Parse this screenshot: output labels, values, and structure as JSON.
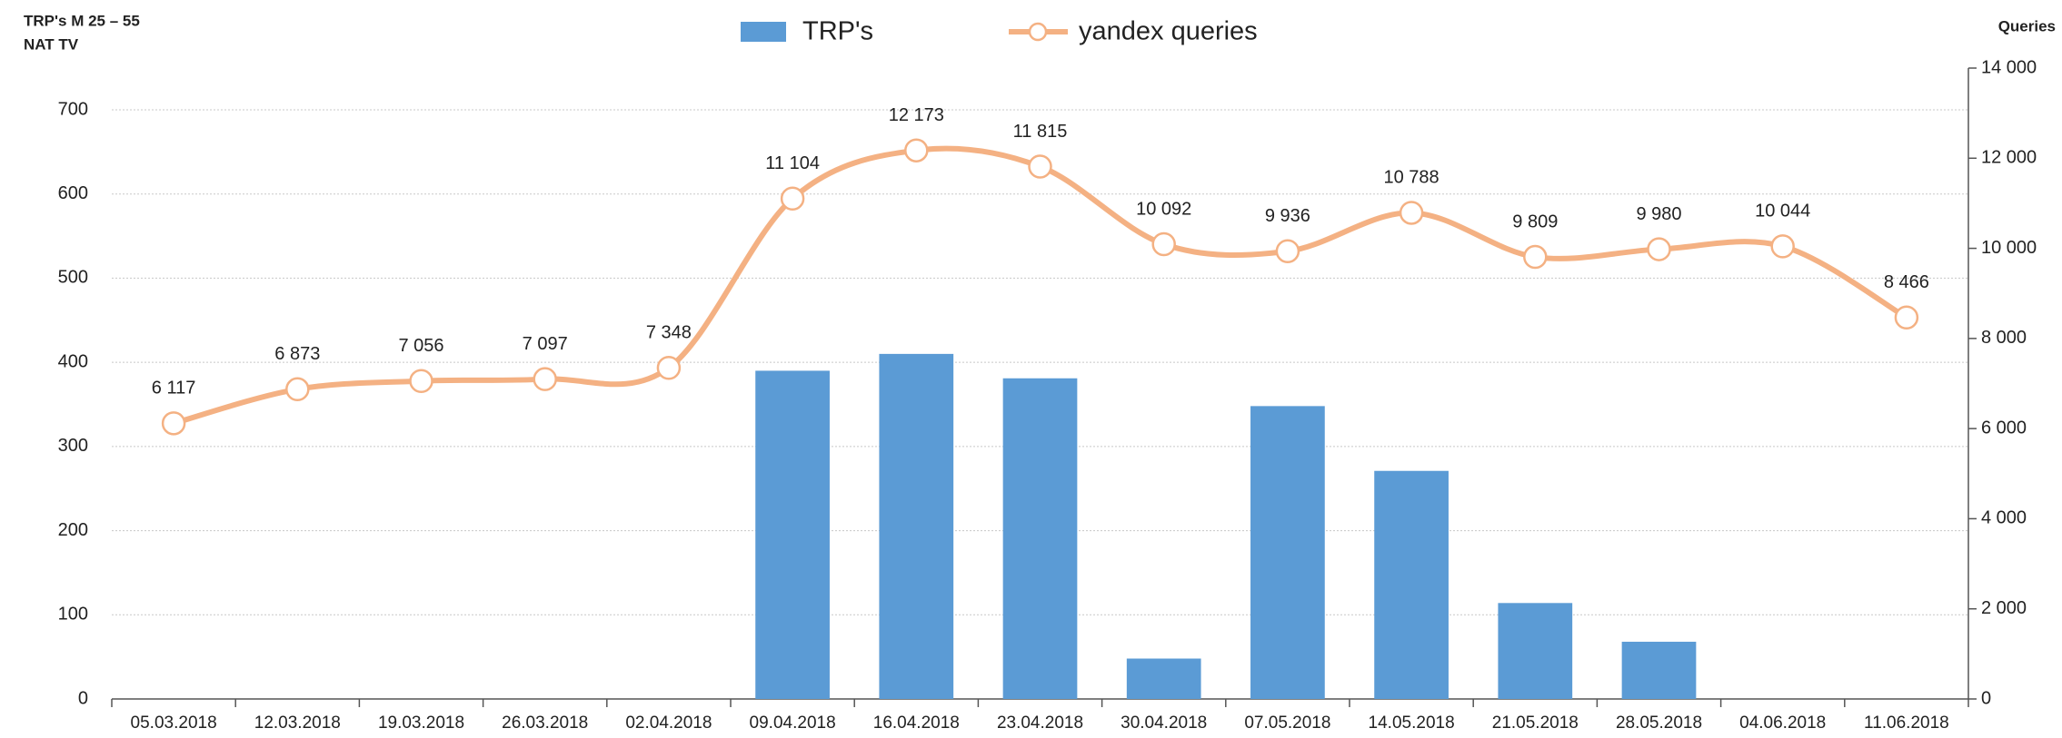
{
  "chart_data": {
    "type": "bar-line",
    "y_label_lines": [
      "TRP's M 25 – 55",
      "NAT TV"
    ],
    "y2_label": "Queries",
    "categories": [
      "05.03.2018",
      "12.03.2018",
      "19.03.2018",
      "26.03.2018",
      "02.04.2018",
      "09.04.2018",
      "16.04.2018",
      "23.04.2018",
      "30.04.2018",
      "07.05.2018",
      "14.05.2018",
      "21.05.2018",
      "28.05.2018",
      "04.06.2018",
      "11.06.2018"
    ],
    "series": [
      {
        "name": "TRP's",
        "type": "bar",
        "axis": "y",
        "color": "#5b9bd5",
        "values": [
          0,
          0,
          0,
          0,
          0,
          390,
          410,
          381,
          48,
          348,
          271,
          114,
          68,
          0,
          0
        ]
      },
      {
        "name": "yandex queries",
        "type": "line",
        "axis": "y2",
        "color": "#f4b183",
        "smooth": true,
        "values": [
          6117,
          6873,
          7056,
          7097,
          7348,
          11104,
          12173,
          11815,
          10092,
          9936,
          10788,
          9809,
          9980,
          10044,
          8466
        ],
        "value_labels": [
          "6 117",
          "6 873",
          "7 056",
          "7 097",
          "7 348",
          "11 104",
          "12 173",
          "11 815",
          "10 092",
          "9 936",
          "10 788",
          "9 809",
          "9 980",
          "10 044",
          "8 466"
        ]
      }
    ],
    "ylim": [
      0,
      700
    ],
    "yticks": [
      0,
      100,
      200,
      300,
      400,
      500,
      600,
      700
    ],
    "y2lim": [
      0,
      14000
    ],
    "y2ticks": [
      0,
      {
        "value": 2000,
        "label": "2 000"
      },
      {
        "value": 4000,
        "label": "4 000"
      },
      {
        "value": 6000,
        "label": "6 000"
      },
      {
        "value": 8000,
        "label": "8 000"
      },
      {
        "value": 10000,
        "label": "10 000"
      },
      {
        "value": 12000,
        "label": "12 000"
      },
      {
        "value": 14000,
        "label": "14 000"
      }
    ],
    "grid": true,
    "legend": "top"
  }
}
